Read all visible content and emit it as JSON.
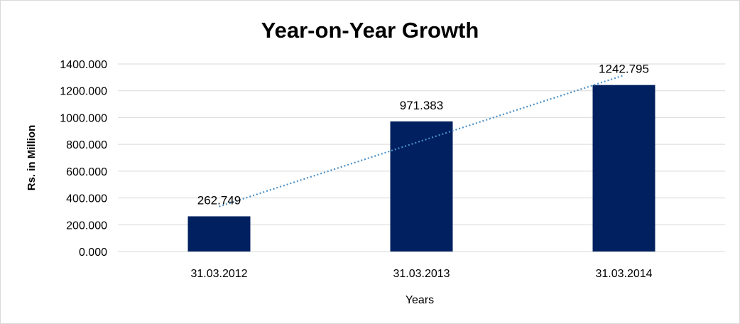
{
  "chart_data": {
    "type": "bar",
    "title": "Year-on-Year Growth",
    "xlabel": "Years",
    "ylabel": "Rs. in Million",
    "categories": [
      "31.03.2012",
      "31.03.2013",
      "31.03.2014"
    ],
    "values": [
      262.749,
      971.383,
      1242.795
    ],
    "data_labels": [
      "262.749",
      "971.383",
      "1242.795"
    ],
    "ylim": [
      0,
      1400
    ],
    "yticks": [
      0,
      200,
      400,
      600,
      800,
      1000,
      1200,
      1400
    ],
    "ytick_labels": [
      "0.000",
      "200.000",
      "400.000",
      "600.000",
      "800.000",
      "1000.000",
      "1200.000",
      "1400.000"
    ],
    "grid": true,
    "legend": "none",
    "trendline": "linear",
    "bar_color": "#002060",
    "trendline_color": "#4a90c8"
  }
}
